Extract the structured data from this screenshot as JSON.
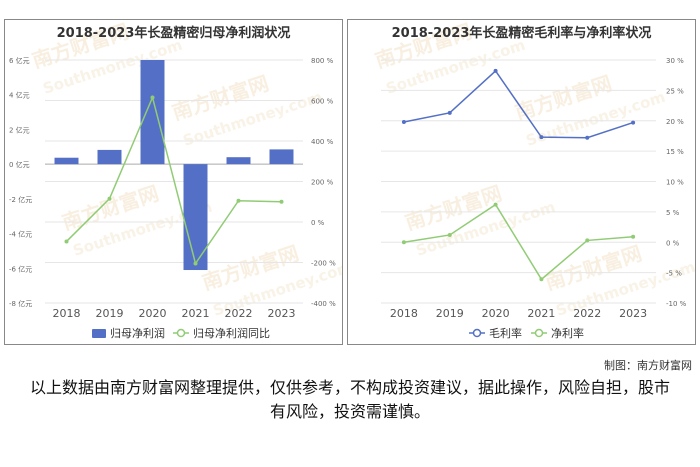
{
  "chart_data": [
    {
      "type": "bar+line",
      "title": "2018-2023年长盈精密归母净利润状况",
      "categories": [
        "2018",
        "2019",
        "2020",
        "2021",
        "2022",
        "2023"
      ],
      "series": [
        {
          "name": "归母净利润",
          "type": "bar",
          "axis": "left",
          "values": [
            0.37,
            0.82,
            6.0,
            -6.1,
            0.4,
            0.85
          ]
        },
        {
          "name": "归母净利润同比",
          "type": "line",
          "axis": "right",
          "values": [
            -96,
            115,
            615,
            -205,
            105,
            100
          ]
        }
      ],
      "y_left": {
        "ticks": [
          "-8 亿元",
          "-6 亿元",
          "-4 亿元",
          "-2 亿元",
          "0 亿元",
          "2 亿元",
          "4 亿元",
          "6 亿元"
        ],
        "ylim": [
          -8,
          6
        ]
      },
      "y_right": {
        "ticks": [
          "-400 %",
          "-200 %",
          "0 %",
          "200 %",
          "400 %",
          "600 %",
          "800 %"
        ],
        "ylim": [
          -400,
          800
        ]
      },
      "legend_position": "bottom",
      "colors": {
        "bar": "#5470c6",
        "line": "#91cc75"
      }
    },
    {
      "type": "line",
      "title": "2018-2023年长盈精密毛利率与净利率状况",
      "categories": [
        "2018",
        "2019",
        "2020",
        "2021",
        "2022",
        "2023"
      ],
      "series": [
        {
          "name": "毛利率",
          "values": [
            19.8,
            21.3,
            28.2,
            17.3,
            17.2,
            19.7
          ]
        },
        {
          "name": "净利率",
          "values": [
            0.0,
            1.2,
            6.2,
            -6.1,
            0.3,
            0.9
          ]
        }
      ],
      "y_right": {
        "ticks": [
          "-10 %",
          "-5 %",
          "0 %",
          "5 %",
          "10 %",
          "15 %",
          "20 %",
          "25 %",
          "30 %"
        ],
        "ylim": [
          -10,
          30
        ]
      },
      "legend_position": "bottom",
      "colors": {
        "gross": "#5470c6",
        "net": "#91cc75"
      }
    }
  ],
  "watermark": {
    "cn": "南方财富网",
    "en": "Southmoney.com"
  },
  "credit": "制图：南方财富网",
  "disclaimer": "以上数据由南方财富网整理提供，仅供参考，不构成投资建议，据此操作，风险自担，股市有风险，投资需谨慎。"
}
